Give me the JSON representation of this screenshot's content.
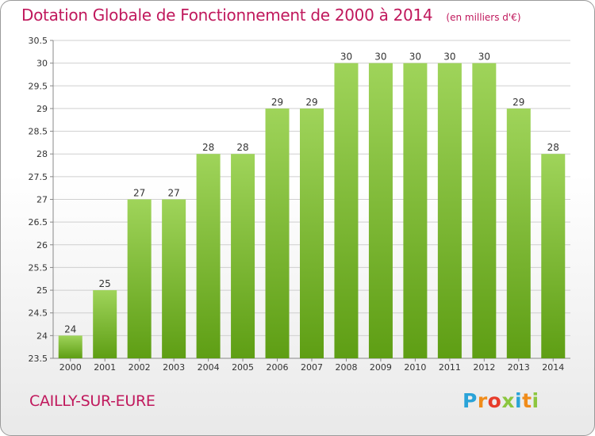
{
  "header": {
    "title": "Dotation Globale de Fonctionnement de 2000 à 2014",
    "subtitle": "(en milliers d'€)"
  },
  "footer": {
    "commune": "CAILLY-SUR-EURE"
  },
  "logo": {
    "text": "Proxiti",
    "letters": [
      {
        "ch": "P",
        "color": "#2aa3d8"
      },
      {
        "ch": "r",
        "color": "#f08c1a"
      },
      {
        "ch": "o",
        "color": "#e73c2b"
      },
      {
        "ch": "x",
        "color": "#8cc63f"
      },
      {
        "ch": "i",
        "color": "#2aa3d8"
      },
      {
        "ch": "t",
        "color": "#f08c1a"
      },
      {
        "ch": "i",
        "color": "#8cc63f"
      }
    ]
  },
  "colors": {
    "title": "#c0185c",
    "bar_top": "#9fd45a",
    "bar_bottom": "#5e9e14",
    "grid": "#cfcfcf",
    "axis_text": "#333333"
  },
  "chart_data": {
    "type": "bar",
    "categories": [
      "2000",
      "2001",
      "2002",
      "2003",
      "2004",
      "2005",
      "2006",
      "2007",
      "2008",
      "2009",
      "2010",
      "2011",
      "2012",
      "2013",
      "2014"
    ],
    "values": [
      24,
      25,
      27,
      27,
      28,
      28,
      29,
      29,
      30,
      30,
      30,
      30,
      30,
      29,
      28
    ],
    "value_labels": [
      "24",
      "25",
      "27",
      "27",
      "28",
      "28",
      "29",
      "29",
      "30",
      "30",
      "30",
      "30",
      "30",
      "29",
      "28"
    ],
    "ylim": [
      23.5,
      30.5
    ],
    "yticks": [
      23.5,
      24,
      24.5,
      25,
      25.5,
      26,
      26.5,
      27,
      27.5,
      28,
      28.5,
      29,
      29.5,
      30,
      30.5
    ],
    "ytick_labels": [
      "23.5",
      "24",
      "24.5",
      "25",
      "25.5",
      "26",
      "26.5",
      "27",
      "27.5",
      "28",
      "28.5",
      "29",
      "29.5",
      "30",
      "30.5"
    ],
    "grid": true,
    "legend": "none"
  }
}
